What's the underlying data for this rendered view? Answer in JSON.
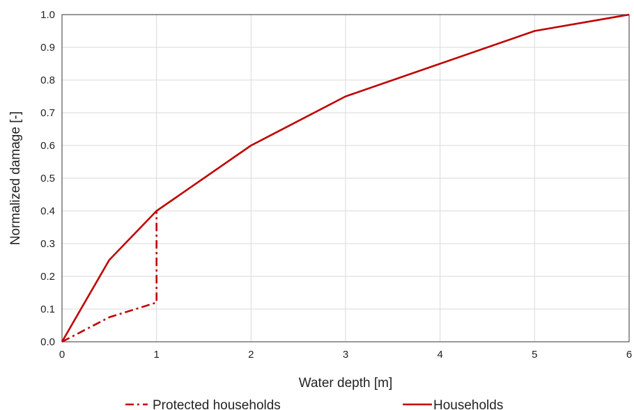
{
  "chart_data": {
    "type": "line",
    "title": "",
    "xlabel": "Water depth [m]",
    "ylabel": "Normalized damage [-]",
    "xlim": [
      0,
      6
    ],
    "ylim": [
      0,
      1
    ],
    "x_ticks": [
      "0",
      "1",
      "2",
      "3",
      "4",
      "5",
      "6"
    ],
    "y_ticks": [
      "0.0",
      "0.1",
      "0.2",
      "0.3",
      "0.4",
      "0.5",
      "0.6",
      "0.7",
      "0.8",
      "0.9",
      "1.0"
    ],
    "grid": true,
    "legend_position": "bottom",
    "series": [
      {
        "name": "Protected households",
        "style": "dash-dot",
        "color": "#c00000",
        "x": [
          0,
          0.5,
          1,
          1
        ],
        "y": [
          0,
          0.075,
          0.12,
          0.4
        ]
      },
      {
        "name": "Households",
        "style": "solid",
        "color": "#c00000",
        "x": [
          0,
          0.5,
          1,
          2,
          3,
          4,
          5,
          6
        ],
        "y": [
          0,
          0.25,
          0.4,
          0.6,
          0.75,
          0.85,
          0.95,
          1.0
        ]
      }
    ]
  }
}
